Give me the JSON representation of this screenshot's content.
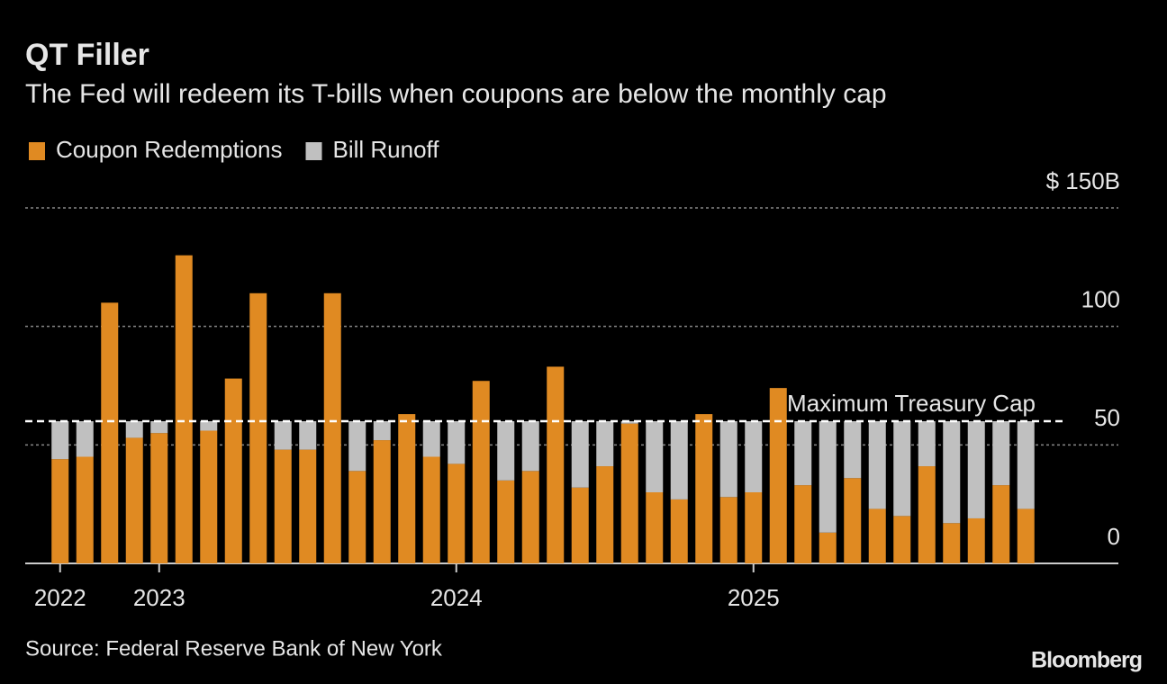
{
  "chart_data": {
    "type": "stacked_bar",
    "title": "QT Filler",
    "subtitle": "The Fed will redeem its T-bills when coupons are below the monthly cap",
    "source": "Source: Federal Reserve Bank of New York",
    "brand": "Bloomberg",
    "categories": [
      "2022",
      null,
      null,
      null,
      "2023",
      null,
      null,
      null,
      null,
      null,
      null,
      null,
      null,
      null,
      null,
      null,
      "2024",
      null,
      null,
      null,
      null,
      null,
      null,
      null,
      null,
      null,
      null,
      null,
      "2025",
      null,
      null,
      null,
      null,
      null,
      null,
      null,
      null,
      null,
      null,
      null
    ],
    "series": [
      {
        "name": "Coupon Redemptions",
        "color": "#e08a22",
        "values": [
          44,
          45,
          110,
          53,
          55,
          130,
          56,
          78,
          114,
          48,
          48,
          114,
          39,
          52,
          63,
          45,
          42,
          77,
          35,
          39,
          83,
          32,
          41,
          59,
          30,
          27,
          63,
          28,
          30,
          74,
          33,
          13,
          36,
          23,
          20,
          41,
          17,
          19,
          33,
          23
        ]
      },
      {
        "name": "Bill Runoff",
        "color": "#c0c0c0",
        "values": [
          16,
          15,
          0,
          7,
          5,
          0,
          4,
          0,
          0,
          12,
          12,
          0,
          21,
          8,
          0,
          15,
          18,
          0,
          25,
          21,
          0,
          28,
          19,
          1,
          30,
          33,
          0,
          32,
          30,
          0,
          27,
          47,
          24,
          37,
          40,
          19,
          43,
          41,
          27,
          37
        ]
      }
    ],
    "ylim": [
      0,
      150
    ],
    "yticks": [
      0,
      50,
      100,
      {
        "value": 150,
        "label": "$ 150B"
      }
    ],
    "grid": true,
    "reference_line": {
      "label": "Maximum Treasury Cap",
      "value": 60
    }
  }
}
